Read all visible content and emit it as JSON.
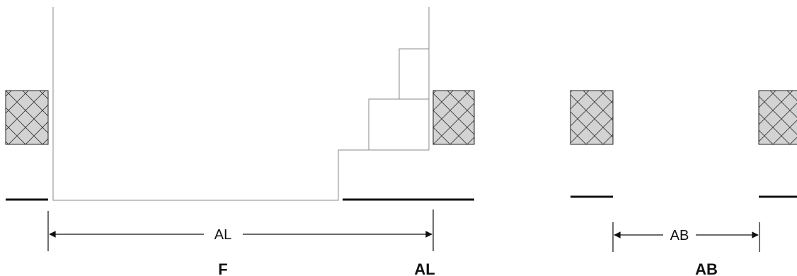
{
  "dimensions": {
    "left_dimension": "AL",
    "right_dimension": "AB"
  },
  "captions": {
    "left_caption": "F",
    "middle_caption": "AL",
    "right_caption": "AB"
  },
  "colors": {
    "hatch_fill": "#d3d3d3",
    "line": "#111111",
    "thin_line": "#8a8a8a"
  }
}
